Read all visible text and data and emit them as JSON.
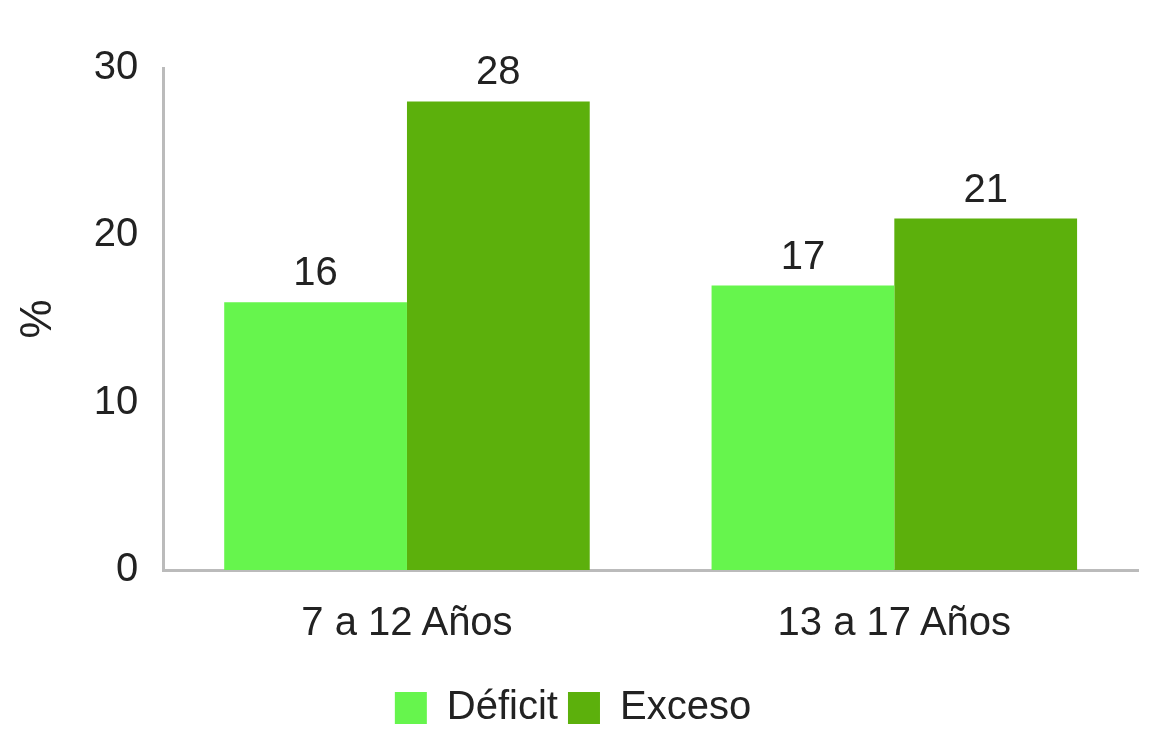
{
  "chart_data": {
    "type": "bar",
    "ylabel": "%",
    "categories": [
      "7 a 12 Años",
      "13 a 17 Años"
    ],
    "series": [
      {
        "name": "Déficit",
        "color": "#66f54d",
        "values": [
          16,
          17
        ]
      },
      {
        "name": "Exceso",
        "color": "#5cb00c",
        "values": [
          28,
          21
        ]
      }
    ],
    "ylim": [
      0,
      30
    ],
    "yticks": [
      0,
      10,
      20,
      30
    ],
    "grid": false,
    "legend": "bottom",
    "data_labels": true
  }
}
